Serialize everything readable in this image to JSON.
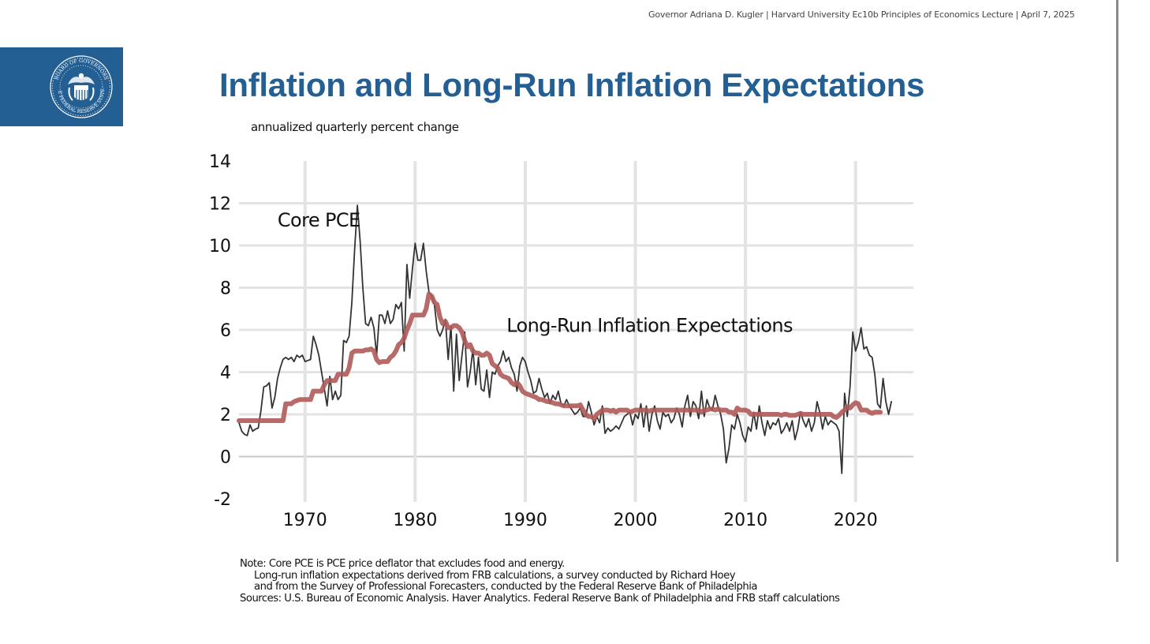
{
  "header": {
    "presenter": "Governor Adriana D. Kugler",
    "event": "Harvard University Ec10b Principles of Economics Lecture",
    "date": "April 7, 2025",
    "separator": "|"
  },
  "logo": {
    "icon": "federal-reserve-seal-icon",
    "text": "BOARD OF GOVERNORS OF THE FEDERAL RESERVE SYSTEM",
    "bg_color": "#245f93"
  },
  "slide": {
    "title": "Inflation and Long-Run Inflation Expectations",
    "title_color": "#245f93"
  },
  "notes": {
    "line1": "Note: Core PCE is PCE price deflator that excludes food and energy.",
    "line2": "Long-run inflation expectations derived from FRB calculations, a survey conducted by Richard Hoey",
    "line3": "and from the Survey of Professional Forecasters, conducted by the Federal Reserve Bank of Philadelphia",
    "line4": "Sources: U.S. Bureau of Economic Analysis. Haver Analytics. Federal Reserve Bank of Philadelphia and FRB staff calculations"
  },
  "chart_data": {
    "type": "line",
    "title": "Inflation and Long-Run Inflation Expectations",
    "subtitle": "annualized quarterly percent change",
    "xlabel": "",
    "ylabel": "annualized quarterly percent change",
    "xlim": [
      1964,
      2025.25
    ],
    "ylim": [
      -2,
      14
    ],
    "xticks": [
      1970,
      1980,
      1990,
      2000,
      2010,
      2020
    ],
    "yticks": [
      14,
      12,
      10,
      8,
      6,
      4,
      2,
      0,
      -2
    ],
    "grid": true,
    "legend": "inline-labels",
    "annotations": [
      {
        "text": "Core PCE",
        "x": 1967.5,
        "y": 11.2
      },
      {
        "text": "Long-Run Inflation Expectations",
        "x": 1988.3,
        "y": 6.2
      }
    ],
    "series": [
      {
        "name": "Core PCE",
        "color": "#333333",
        "x_start": 1964.0,
        "x_step": 0.25,
        "values": [
          1.6,
          1.2,
          1.05,
          1.0,
          1.5,
          1.2,
          1.3,
          1.35,
          2.2,
          3.3,
          3.35,
          3.5,
          2.3,
          2.8,
          3.7,
          4.2,
          4.6,
          4.7,
          4.6,
          4.7,
          4.5,
          4.8,
          4.7,
          4.8,
          4.5,
          4.55,
          4.6,
          5.7,
          5.3,
          4.8,
          4.0,
          3.2,
          2.4,
          3.8,
          2.7,
          3.1,
          2.7,
          2.9,
          5.5,
          5.4,
          5.7,
          7.3,
          9.8,
          11.9,
          10.2,
          8.0,
          6.3,
          6.2,
          6.6,
          6.1,
          4.8,
          6.7,
          6.7,
          6.3,
          6.9,
          6.3,
          6.5,
          7.2,
          7.0,
          7.3,
          5.0,
          9.1,
          7.5,
          8.9,
          10.1,
          9.3,
          9.3,
          10.1,
          8.8,
          7.8,
          7.6,
          7.2,
          6.0,
          5.7,
          6.0,
          6.5,
          4.6,
          6.2,
          3.1,
          5.8,
          3.6,
          4.8,
          5.9,
          3.3,
          4.0,
          5.1,
          3.4,
          4.7,
          3.2,
          3.1,
          4.1,
          2.8,
          4.0,
          3.9,
          4.3,
          4.5,
          5.0,
          4.5,
          4.7,
          4.2,
          3.9,
          3.1,
          4.3,
          4.7,
          4.5,
          4.0,
          3.6,
          3.0,
          3.1,
          3.7,
          3.2,
          2.8,
          3.0,
          2.5,
          2.9,
          2.7,
          3.1,
          2.5,
          2.4,
          2.7,
          2.4,
          2.2,
          2.0,
          2.1,
          2.3,
          1.9,
          1.9,
          2.6,
          2.1,
          1.5,
          1.9,
          1.6,
          2.4,
          1.1,
          1.35,
          1.2,
          1.3,
          1.45,
          1.3,
          1.6,
          1.9,
          2.0,
          2.1,
          1.5,
          2.0,
          1.8,
          2.5,
          1.4,
          2.4,
          1.2,
          2.0,
          2.4,
          1.7,
          1.3,
          2.1,
          1.9,
          2.0,
          1.6,
          1.8,
          2.3,
          2.0,
          1.4,
          2.4,
          2.9,
          1.9,
          2.6,
          2.4,
          1.8,
          3.1,
          1.9,
          2.7,
          2.3,
          2.2,
          2.9,
          2.4,
          2.0,
          1.3,
          -0.3,
          0.4,
          1.5,
          1.3,
          2.0,
          1.6,
          1.0,
          0.7,
          1.4,
          1.2,
          2.1,
          1.3,
          2.4,
          1.6,
          1.0,
          1.7,
          1.3,
          1.6,
          1.5,
          1.8,
          1.1,
          1.3,
          1.6,
          1.2,
          1.7,
          0.8,
          1.3,
          2.1,
          1.7,
          1.4,
          1.8,
          1.2,
          1.6,
          2.6,
          2.1,
          1.3,
          1.9,
          1.5,
          1.7,
          1.6,
          1.5,
          1.2,
          -0.8,
          3.0,
          1.9,
          3.3,
          5.9,
          5.0,
          5.4,
          6.1,
          5.1,
          5.2,
          4.8,
          4.7,
          3.9,
          2.5,
          2.3,
          3.7,
          2.6,
          2.0,
          2.6
        ]
      },
      {
        "name": "Long-Run Inflation Expectations",
        "color": "#b05a59",
        "x_start": 1964.0,
        "x_step": 0.25,
        "values": [
          1.7,
          1.7,
          1.7,
          1.7,
          1.7,
          1.7,
          1.7,
          1.7,
          1.7,
          1.7,
          1.7,
          1.7,
          1.7,
          1.7,
          1.7,
          1.7,
          1.7,
          2.5,
          2.5,
          2.5,
          2.6,
          2.65,
          2.7,
          2.7,
          2.7,
          2.7,
          2.7,
          3.1,
          3.1,
          3.1,
          3.1,
          3.4,
          3.6,
          3.6,
          3.6,
          3.6,
          3.9,
          3.9,
          3.9,
          3.9,
          4.2,
          4.9,
          5.0,
          5.0,
          5.0,
          5.0,
          5.05,
          5.05,
          5.1,
          5.0,
          4.6,
          4.45,
          4.5,
          4.5,
          4.5,
          4.7,
          4.8,
          5.0,
          5.3,
          5.4,
          5.6,
          6.0,
          6.3,
          6.7,
          6.7,
          6.7,
          6.7,
          6.7,
          7.0,
          7.7,
          7.6,
          7.3,
          7.2,
          6.6,
          6.3,
          6.4,
          6.1,
          6.1,
          6.2,
          6.2,
          6.1,
          5.9,
          5.5,
          5.2,
          5.3,
          5.0,
          4.9,
          4.9,
          4.8,
          4.8,
          4.9,
          4.8,
          4.4,
          4.3,
          4.2,
          3.9,
          3.8,
          3.75,
          3.7,
          3.5,
          3.4,
          3.5,
          3.35,
          3.1,
          3.0,
          2.95,
          2.9,
          2.85,
          2.8,
          2.7,
          2.7,
          2.65,
          2.6,
          2.6,
          2.55,
          2.5,
          2.5,
          2.45,
          2.4,
          2.4,
          2.4,
          2.4,
          2.4,
          2.4,
          2.45,
          2.2,
          2.0,
          1.9,
          1.9,
          1.8,
          2.0,
          2.1,
          2.2,
          2.2,
          2.2,
          2.15,
          2.2,
          2.1,
          2.2,
          2.2,
          2.2,
          2.2,
          2.1,
          2.15,
          2.2,
          2.2,
          2.2,
          2.2,
          2.2,
          2.15,
          2.2,
          2.2,
          2.2,
          2.2,
          2.2,
          2.2,
          2.2,
          2.2,
          2.2,
          2.2,
          2.2,
          2.2,
          2.2,
          2.2,
          2.2,
          2.2,
          2.2,
          2.2,
          2.1,
          2.2,
          2.2,
          2.25,
          2.25,
          2.2,
          2.25,
          2.2,
          2.2,
          2.2,
          2.1,
          2.1,
          2.0,
          2.3,
          2.2,
          2.2,
          2.2,
          2.15,
          2.0,
          2.0,
          2.0,
          2.0,
          2.0,
          2.0,
          2.0,
          2.0,
          2.0,
          2.0,
          2.0,
          1.95,
          2.0,
          2.0,
          1.95,
          1.95,
          1.95,
          2.0,
          2.05,
          2.0,
          2.0,
          2.0,
          2.0,
          2.0,
          2.0,
          2.0,
          2.0,
          2.0,
          2.0,
          2.0,
          1.9,
          1.85,
          1.95,
          2.1,
          2.2,
          2.35,
          2.3,
          2.45,
          2.55,
          2.5,
          2.2,
          2.2,
          2.2,
          2.1,
          2.05,
          2.1,
          2.1,
          2.1
        ]
      }
    ]
  }
}
